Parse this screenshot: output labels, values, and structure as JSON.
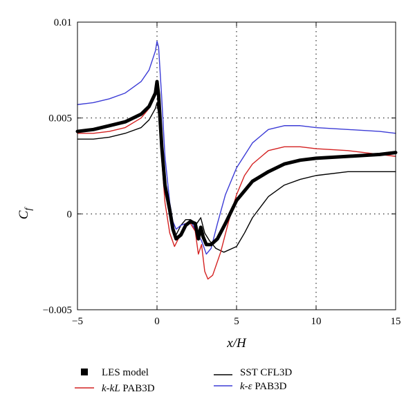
{
  "chart_data": {
    "type": "line",
    "xlabel": "x/H",
    "ylabel": "C_f",
    "xlim": [
      -5,
      15
    ],
    "ylim": [
      -0.005,
      0.01
    ],
    "x_ticks": [
      -5,
      0,
      5,
      10,
      15
    ],
    "x_tick_labels": [
      "−5",
      "0",
      "5",
      "10",
      "15"
    ],
    "y_ticks": [
      -0.005,
      0,
      0.005,
      0.01
    ],
    "y_tick_labels": [
      "−0.005",
      "0",
      "0.005",
      "0.01"
    ],
    "grid": "dotted lines at x = 0, 5, 10 and y = 0, 0.005",
    "legend_position": "below plot",
    "series": [
      {
        "name": "LES model",
        "legend_label": "LES model",
        "color": "#000000",
        "style": "thick",
        "points": [
          [
            -5,
            0.0043
          ],
          [
            -4,
            0.0044
          ],
          [
            -3,
            0.0046
          ],
          [
            -2,
            0.0048
          ],
          [
            -1,
            0.0052
          ],
          [
            -0.5,
            0.0056
          ],
          [
            -0.1,
            0.0063
          ],
          [
            0,
            0.0069
          ],
          [
            0.1,
            0.0062
          ],
          [
            0.3,
            0.0035
          ],
          [
            0.5,
            0.0015
          ],
          [
            0.8,
            0.0002
          ],
          [
            1.0,
            -0.0008
          ],
          [
            1.2,
            -0.0013
          ],
          [
            1.5,
            -0.0011
          ],
          [
            1.8,
            -0.0006
          ],
          [
            2.1,
            -0.0004
          ],
          [
            2.4,
            -0.0005
          ],
          [
            2.6,
            -0.0013
          ],
          [
            2.75,
            -0.0007
          ],
          [
            2.9,
            -0.0012
          ],
          [
            3.1,
            -0.0016
          ],
          [
            3.4,
            -0.0016
          ],
          [
            3.8,
            -0.0013
          ],
          [
            4.3,
            -0.0005
          ],
          [
            5,
            0.0007
          ],
          [
            6,
            0.0017
          ],
          [
            7,
            0.0022
          ],
          [
            8,
            0.0026
          ],
          [
            9,
            0.0028
          ],
          [
            10,
            0.0029
          ],
          [
            12,
            0.003
          ],
          [
            14,
            0.0031
          ],
          [
            15,
            0.0032
          ]
        ]
      },
      {
        "name": "SST CFL3D",
        "legend_label": "SST CFL3D",
        "color": "#000000",
        "style": "thin",
        "points": [
          [
            -5,
            0.0039
          ],
          [
            -4,
            0.0039
          ],
          [
            -3,
            0.004
          ],
          [
            -2,
            0.0042
          ],
          [
            -1,
            0.0045
          ],
          [
            -0.5,
            0.0049
          ],
          [
            -0.1,
            0.0055
          ],
          [
            0,
            0.0058
          ],
          [
            0.1,
            0.0052
          ],
          [
            0.3,
            0.003
          ],
          [
            0.5,
            0.0012
          ],
          [
            0.8,
            0.0
          ],
          [
            1.0,
            -0.0007
          ],
          [
            1.2,
            -0.0011
          ],
          [
            1.5,
            -0.0006
          ],
          [
            1.8,
            -0.0003
          ],
          [
            2.1,
            -0.0003
          ],
          [
            2.5,
            -0.0005
          ],
          [
            2.75,
            -0.0002
          ],
          [
            3.0,
            -0.001
          ],
          [
            3.3,
            -0.0014
          ],
          [
            3.7,
            -0.0018
          ],
          [
            4.2,
            -0.002
          ],
          [
            5,
            -0.0017
          ],
          [
            5.5,
            -0.001
          ],
          [
            6,
            -0.0002
          ],
          [
            7,
            0.0009
          ],
          [
            8,
            0.0015
          ],
          [
            9,
            0.0018
          ],
          [
            10,
            0.002
          ],
          [
            12,
            0.0022
          ],
          [
            14,
            0.0022
          ],
          [
            15,
            0.0022
          ]
        ]
      },
      {
        "name": "k-kL PAB3D",
        "legend_label": "k-kL PAB3D",
        "color": "#d42020",
        "style": "thin",
        "points": [
          [
            -5,
            0.0042
          ],
          [
            -4,
            0.0042
          ],
          [
            -3,
            0.0043
          ],
          [
            -2,
            0.0045
          ],
          [
            -1,
            0.005
          ],
          [
            -0.5,
            0.0055
          ],
          [
            -0.1,
            0.0062
          ],
          [
            0,
            0.0069
          ],
          [
            0.1,
            0.0058
          ],
          [
            0.3,
            0.0028
          ],
          [
            0.5,
            0.0006
          ],
          [
            0.8,
            -0.001
          ],
          [
            1.1,
            -0.0017
          ],
          [
            1.4,
            -0.0012
          ],
          [
            1.8,
            -0.0005
          ],
          [
            2.1,
            -0.0005
          ],
          [
            2.4,
            -0.0009
          ],
          [
            2.6,
            -0.0021
          ],
          [
            2.8,
            -0.0016
          ],
          [
            3.0,
            -0.003
          ],
          [
            3.2,
            -0.0034
          ],
          [
            3.5,
            -0.0032
          ],
          [
            4.0,
            -0.002
          ],
          [
            4.5,
            -0.0004
          ],
          [
            5.0,
            0.001
          ],
          [
            5.5,
            0.002
          ],
          [
            6,
            0.0026
          ],
          [
            7,
            0.0033
          ],
          [
            8,
            0.0035
          ],
          [
            9,
            0.0035
          ],
          [
            10,
            0.0034
          ],
          [
            12,
            0.0033
          ],
          [
            14,
            0.0031
          ],
          [
            15,
            0.003
          ]
        ]
      },
      {
        "name": "k-ε PAB3D",
        "legend_label": "k-ε PAB3D",
        "color": "#3b3bd6",
        "style": "thin",
        "points": [
          [
            -5,
            0.0057
          ],
          [
            -4,
            0.0058
          ],
          [
            -3,
            0.006
          ],
          [
            -2,
            0.0063
          ],
          [
            -1,
            0.0069
          ],
          [
            -0.5,
            0.0075
          ],
          [
            -0.1,
            0.0085
          ],
          [
            0,
            0.009
          ],
          [
            0.1,
            0.0087
          ],
          [
            0.3,
            0.006
          ],
          [
            0.5,
            0.003
          ],
          [
            0.8,
            0.0006
          ],
          [
            1.0,
            -0.0004
          ],
          [
            1.2,
            -0.0008
          ],
          [
            1.5,
            -0.0006
          ],
          [
            1.8,
            -0.0005
          ],
          [
            2.2,
            -0.0005
          ],
          [
            2.5,
            -0.001
          ],
          [
            2.8,
            -0.0014
          ],
          [
            3.1,
            -0.0021
          ],
          [
            3.4,
            -0.0018
          ],
          [
            3.8,
            -0.0005
          ],
          [
            4.3,
            0.001
          ],
          [
            5,
            0.0024
          ],
          [
            6,
            0.0037
          ],
          [
            7,
            0.0044
          ],
          [
            8,
            0.0046
          ],
          [
            9,
            0.0046
          ],
          [
            10,
            0.0045
          ],
          [
            12,
            0.0044
          ],
          [
            14,
            0.0043
          ],
          [
            15,
            0.0042
          ]
        ]
      }
    ]
  }
}
